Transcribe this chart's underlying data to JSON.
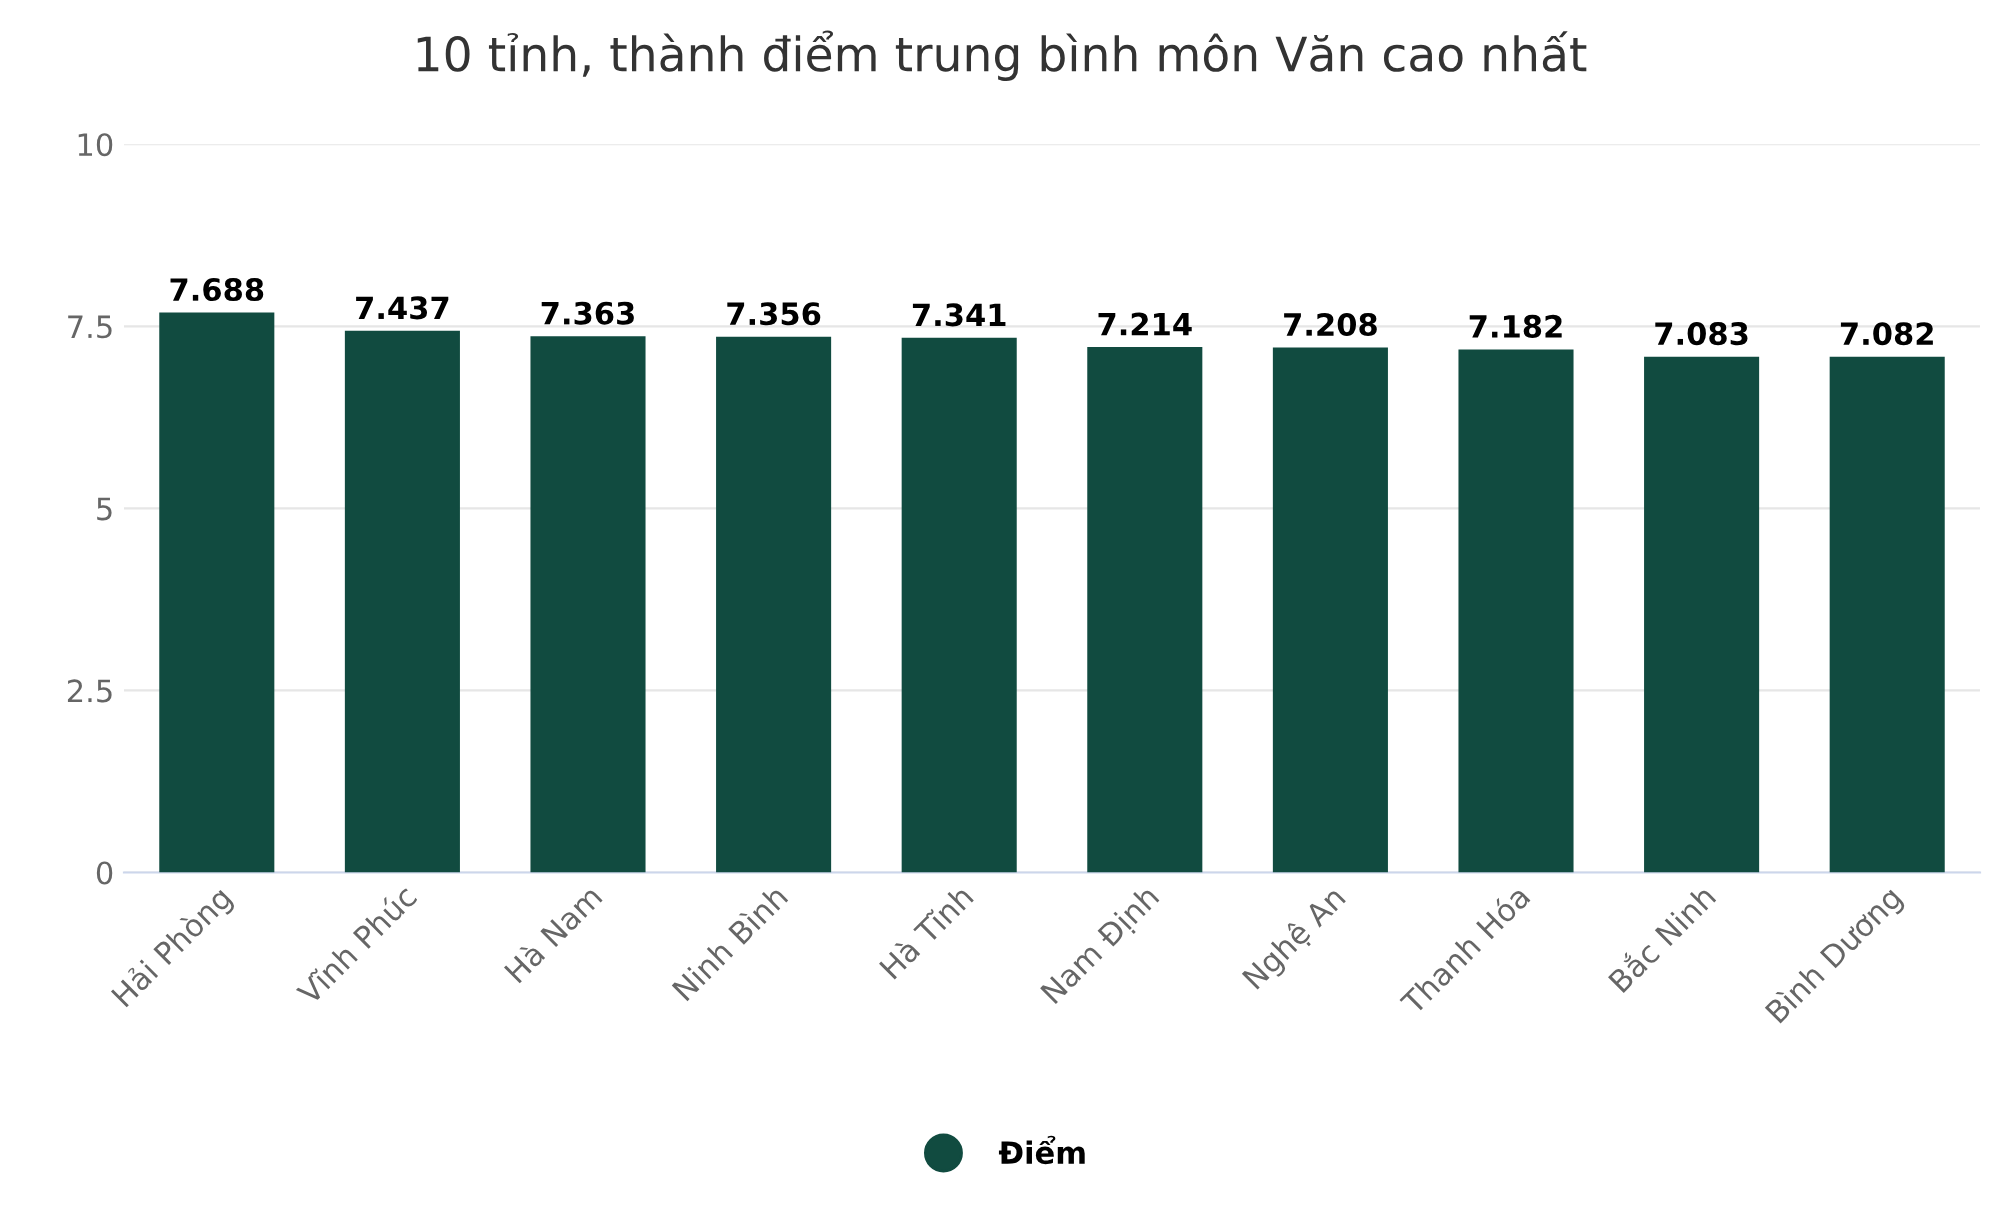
{
  "chart_data": {
    "type": "bar",
    "title": "10 tỉnh, thành điểm trung bình môn Văn cao nhất",
    "categories": [
      "Hải Phòng",
      "Vĩnh Phúc",
      "Hà Nam",
      "Ninh Bình",
      "Hà Tĩnh",
      "Nam Định",
      "Nghệ An",
      "Thanh Hóa",
      "Bắc Ninh",
      "Bình Dương"
    ],
    "series": [
      {
        "name": "Điểm",
        "color": "#114b40",
        "values": [
          7.688,
          7.437,
          7.363,
          7.356,
          7.341,
          7.214,
          7.208,
          7.182,
          7.083,
          7.082
        ]
      }
    ],
    "ylim": [
      0,
      10
    ],
    "yticks": [
      0,
      2.5,
      5,
      7.5,
      10
    ],
    "grid": "y",
    "legend": "bottom",
    "data_labels": true
  }
}
